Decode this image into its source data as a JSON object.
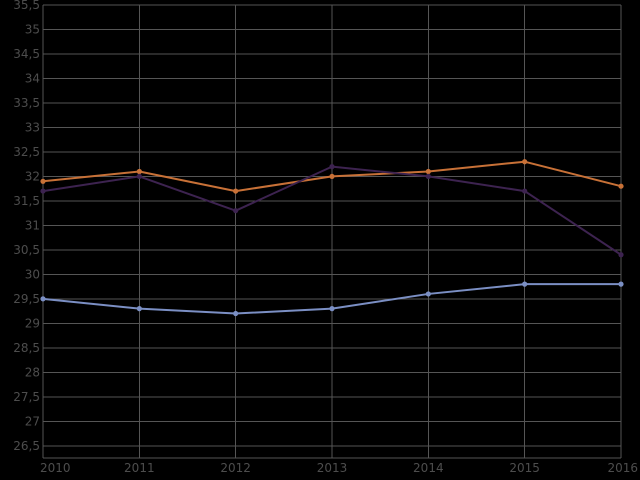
{
  "chart_data": {
    "type": "line",
    "title": "",
    "xlabel": "",
    "ylabel": "",
    "x": [
      2010,
      2011,
      2012,
      2013,
      2014,
      2015,
      2016
    ],
    "x_tick_labels": [
      "2010",
      "2011",
      "2012",
      "2013",
      "2014",
      "2015",
      "2016"
    ],
    "ylim": [
      26.25,
      35.5
    ],
    "y_ticks": [
      26.5,
      27,
      27.5,
      28,
      28.5,
      29,
      29.5,
      30,
      30.5,
      31,
      31.5,
      32,
      32.5,
      33,
      33.5,
      34,
      34.5,
      35,
      35.5
    ],
    "y_tick_labels": [
      "26,5",
      "27",
      "27,5",
      "28",
      "28,5",
      "29",
      "29,5",
      "30",
      "30,5",
      "31",
      "31,5",
      "32",
      "32,5",
      "33",
      "33,5",
      "34",
      "34,5",
      "35",
      "35,5"
    ],
    "grid": true,
    "background": "#000000",
    "gridColor": "#555555",
    "labelColor": "#4d4d4d",
    "series": [
      {
        "color": "#c87137",
        "values": [
          31.9,
          32.1,
          31.7,
          32.0,
          32.1,
          32.3,
          31.8
        ]
      },
      {
        "color": "#3d2350",
        "values": [
          31.7,
          32.0,
          31.3,
          32.2,
          32.0,
          31.7,
          30.4
        ]
      },
      {
        "color": "#7b8fc4",
        "values": [
          29.5,
          29.3,
          29.2,
          29.3,
          29.6,
          29.8,
          29.8
        ]
      }
    ]
  }
}
